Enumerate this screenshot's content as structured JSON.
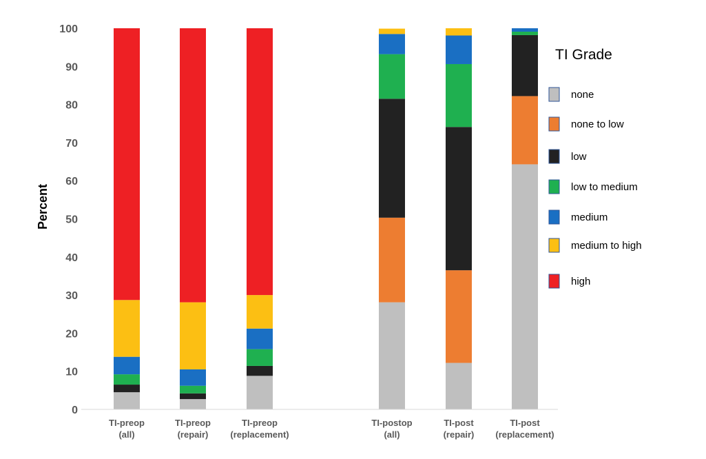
{
  "chart_data": {
    "type": "bar",
    "stacked": true,
    "ylabel": "Percent",
    "xlabel": "",
    "ylim": [
      0,
      100
    ],
    "yticks": [
      0,
      10,
      20,
      30,
      40,
      50,
      60,
      70,
      80,
      90,
      100
    ],
    "grid": false,
    "legend_title": "TI Grade",
    "legend_position": "right",
    "categories": [
      [
        "TI-preop",
        "(all)"
      ],
      [
        "TI-preop",
        "(repair)"
      ],
      [
        "TI-preop",
        "(replacement)"
      ],
      [
        "TI-postop",
        "(all)"
      ],
      [
        "TI-post",
        "(repair)"
      ],
      [
        "TI-post",
        "(replacement)"
      ]
    ],
    "series": [
      {
        "name": "none",
        "color": "#bfbfbf",
        "values": [
          4.5,
          2.7,
          8.8,
          28.1,
          12.2,
          64.3
        ]
      },
      {
        "name": "none to low",
        "color": "#ed7d31",
        "values": [
          0,
          0,
          0,
          22.2,
          24.3,
          17.9
        ]
      },
      {
        "name": "low",
        "color": "#222222",
        "values": [
          2.0,
          1.5,
          2.6,
          31.2,
          37.6,
          16.0
        ]
      },
      {
        "name": "low to medium",
        "color": "#1fb050",
        "values": [
          2.7,
          2.0,
          4.4,
          11.7,
          16.5,
          0.9
        ]
      },
      {
        "name": "medium",
        "color": "#1a6fc3",
        "values": [
          4.6,
          4.3,
          5.4,
          5.3,
          7.5,
          0.9
        ]
      },
      {
        "name": "medium to high",
        "color": "#fcbf13",
        "values": [
          14.9,
          17.6,
          8.8,
          1.4,
          1.9,
          0
        ]
      },
      {
        "name": "high",
        "color": "#ee2024",
        "values": [
          71.3,
          71.9,
          70.0,
          0,
          0,
          0
        ]
      }
    ]
  }
}
